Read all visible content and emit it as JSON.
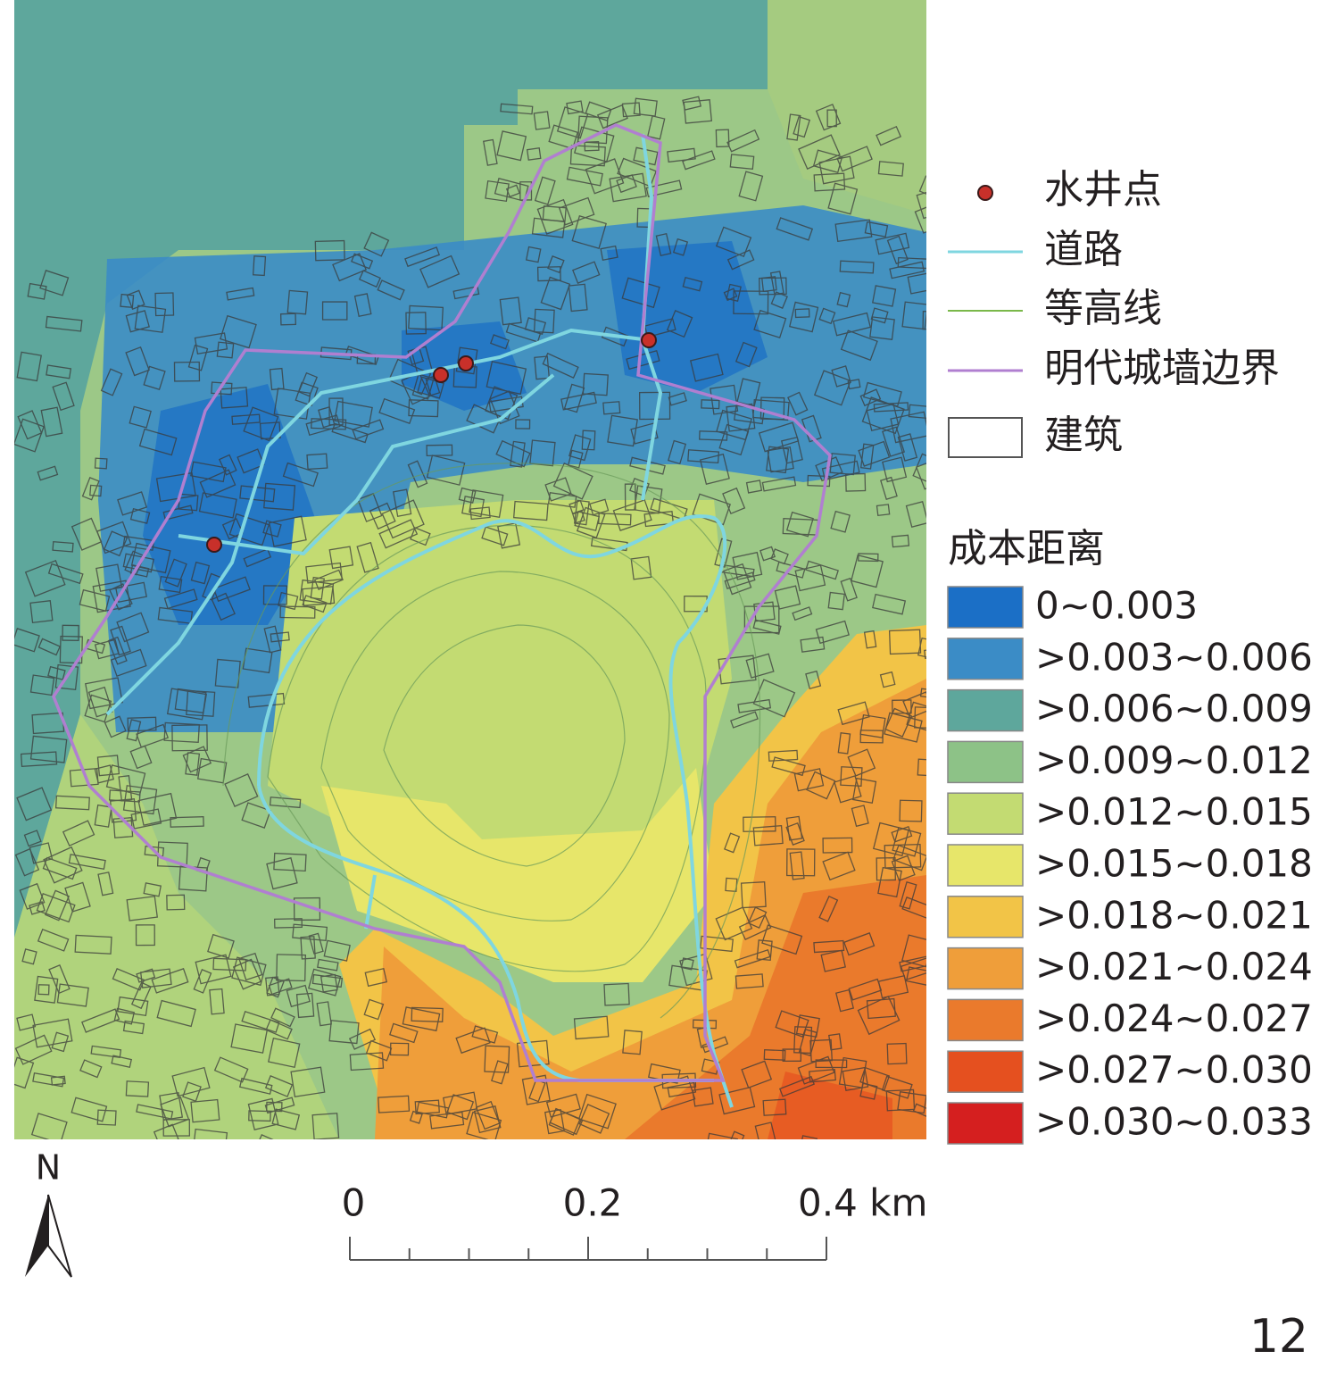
{
  "legend": {
    "items": [
      {
        "label": "水井点"
      },
      {
        "label": "道路"
      },
      {
        "label": "等高线"
      },
      {
        "label": "明代城墙边界"
      },
      {
        "label": "建筑"
      }
    ],
    "cost_title": "成本距离",
    "classes": [
      {
        "label": "0~0.003",
        "color": "#1b6fc6"
      },
      {
        "label": ">0.003~0.006",
        "color": "#3b8cc6"
      },
      {
        "label": ">0.006~0.009",
        "color": "#5ea79c"
      },
      {
        "label": ">0.009~0.012",
        "color": "#8dc287"
      },
      {
        "label": ">0.012~0.015",
        "color": "#c3db72"
      },
      {
        "label": ">0.015~0.018",
        "color": "#e7e66a"
      },
      {
        "label": ">0.018~0.021",
        "color": "#f2c447"
      },
      {
        "label": ">0.021~0.024",
        "color": "#ef9e3a"
      },
      {
        "label": ">0.024~0.027",
        "color": "#ea7a2c"
      },
      {
        "label": ">0.027~0.030",
        "color": "#e5501f"
      },
      {
        "label": ">0.030~0.033",
        "color": "#d51f1f"
      }
    ]
  },
  "scale_bar": {
    "labels": [
      "0",
      "0.2",
      "0.4 km"
    ]
  },
  "north_arrow": {
    "label": "N"
  },
  "figure_number": "12"
}
